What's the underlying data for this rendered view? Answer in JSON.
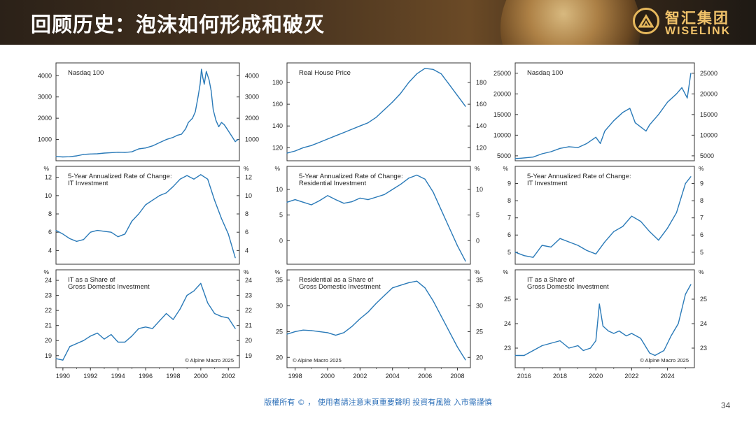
{
  "slide": {
    "title": "回顾历史：泡沫如何形成和破灭",
    "logo_cn": "智汇集团",
    "logo_en": "WISELINK",
    "footer": "版權所有 © ， 使用者請注意末頁重要聲明  投資有風險 入市需謹慎",
    "page_number": "34"
  },
  "colors": {
    "line": "#2a7ab8",
    "axis": "#333333",
    "title_text": "#ffffff",
    "logo": "#f0c26a"
  },
  "chart_data": [
    {
      "id": "c1_top",
      "type": "line",
      "title": "Nasdaq 100",
      "unit": "",
      "note": "",
      "xlim": [
        1989.5,
        2002.8
      ],
      "ylim": [
        0,
        4600
      ],
      "yticks": [
        1000,
        2000,
        3000,
        4000
      ],
      "xticks": [],
      "xtick_labels": [],
      "series": [
        {
          "x": [
            1989.5,
            1990,
            1990.5,
            1991,
            1991.5,
            1992,
            1992.5,
            1993,
            1993.5,
            1994,
            1994.5,
            1995,
            1995.5,
            1996,
            1996.5,
            1997,
            1997.5,
            1998,
            1998.3,
            1998.6,
            1998.9,
            1999.1,
            1999.4,
            1999.6,
            1999.8,
            1999.95,
            2000.05,
            2000.15,
            2000.25,
            2000.4,
            2000.6,
            2000.75,
            2000.9,
            2001.1,
            2001.3,
            2001.5,
            2001.7,
            2001.9,
            2002.1,
            2002.3,
            2002.5,
            2002.7
          ],
          "y": [
            200,
            180,
            190,
            230,
            300,
            320,
            330,
            360,
            380,
            400,
            390,
            420,
            560,
            600,
            700,
            850,
            1000,
            1100,
            1200,
            1250,
            1500,
            1800,
            2000,
            2300,
            3000,
            3600,
            4300,
            3900,
            3600,
            4200,
            3800,
            3300,
            2400,
            1900,
            1600,
            1800,
            1700,
            1500,
            1300,
            1100,
            900,
            1000
          ]
        }
      ]
    },
    {
      "id": "c1_mid",
      "type": "line",
      "title": "5-Year Annualized Rate of Change: IT Investment",
      "unit": "%",
      "note": "",
      "xlim": [
        1989.5,
        2002.8
      ],
      "ylim": [
        2.5,
        13.2
      ],
      "yticks": [
        4,
        6,
        8,
        10,
        12
      ],
      "xticks": [],
      "xtick_labels": [],
      "series": [
        {
          "x": [
            1989.5,
            1990,
            1990.5,
            1991,
            1991.5,
            1992,
            1992.5,
            1993,
            1993.5,
            1994,
            1994.5,
            1995,
            1995.5,
            1996,
            1996.5,
            1997,
            1997.5,
            1998,
            1998.5,
            1999,
            1999.5,
            2000,
            2000.5,
            2001,
            2001.5,
            2002,
            2002.5
          ],
          "y": [
            6.2,
            5.8,
            5.3,
            5.0,
            5.2,
            6.0,
            6.2,
            6.1,
            6.0,
            5.5,
            5.8,
            7.2,
            8.0,
            9.0,
            9.5,
            10.0,
            10.3,
            11.0,
            11.8,
            12.2,
            11.8,
            12.3,
            11.8,
            9.5,
            7.5,
            5.8,
            3.2
          ]
        }
      ]
    },
    {
      "id": "c1_bot",
      "type": "line",
      "title": "IT as a Share of Gross Domestic Investment",
      "unit": "%",
      "note": "© Alpine Macro 2025",
      "xlim": [
        1989.5,
        2002.8
      ],
      "ylim": [
        18.2,
        24.7
      ],
      "yticks": [
        19,
        20,
        21,
        22,
        23,
        24
      ],
      "xticks": [
        1990,
        1992,
        1994,
        1996,
        1998,
        2000,
        2002
      ],
      "xtick_labels": [
        "1990",
        "1992",
        "1994",
        "1996",
        "1998",
        "2000",
        "2002"
      ],
      "series": [
        {
          "x": [
            1989.5,
            1990,
            1990.5,
            1991,
            1991.5,
            1992,
            1992.5,
            1993,
            1993.5,
            1994,
            1994.5,
            1995,
            1995.5,
            1996,
            1996.5,
            1997,
            1997.5,
            1998,
            1998.5,
            1999,
            1999.5,
            2000,
            2000.5,
            2001,
            2001.5,
            2002,
            2002.5
          ],
          "y": [
            18.8,
            18.7,
            19.6,
            19.8,
            20.0,
            20.3,
            20.5,
            20.1,
            20.4,
            19.9,
            19.9,
            20.3,
            20.8,
            20.9,
            20.8,
            21.3,
            21.8,
            21.4,
            22.1,
            23.0,
            23.3,
            23.8,
            22.5,
            21.8,
            21.6,
            21.5,
            20.8
          ]
        }
      ]
    },
    {
      "id": "c2_top",
      "type": "line",
      "title": "Real House Price",
      "unit": "",
      "note": "",
      "xlim": [
        1997.5,
        2008.8
      ],
      "ylim": [
        108,
        198
      ],
      "yticks": [
        120,
        140,
        160,
        180
      ],
      "xticks": [],
      "xtick_labels": [],
      "series": [
        {
          "x": [
            1997.5,
            1998,
            1998.5,
            1999,
            1999.5,
            2000,
            2000.5,
            2001,
            2001.5,
            2002,
            2002.5,
            2003,
            2003.5,
            2004,
            2004.5,
            2005,
            2005.5,
            2006,
            2006.5,
            2007,
            2007.5,
            2008,
            2008.5
          ],
          "y": [
            115,
            117,
            120,
            122,
            125,
            128,
            131,
            134,
            137,
            140,
            143,
            148,
            155,
            162,
            170,
            180,
            188,
            193,
            192,
            188,
            178,
            168,
            158
          ]
        }
      ]
    },
    {
      "id": "c2_mid",
      "type": "line",
      "title": "5-Year Annualized Rate of Change: Residential Investment",
      "unit": "%",
      "note": "",
      "xlim": [
        1997.5,
        2008.8
      ],
      "ylim": [
        -4.6,
        14.5
      ],
      "yticks": [
        0,
        5,
        10
      ],
      "xticks": [],
      "xtick_labels": [],
      "series": [
        {
          "x": [
            1997.5,
            1998,
            1998.5,
            1999,
            1999.5,
            2000,
            2000.5,
            2001,
            2001.5,
            2002,
            2002.5,
            2003,
            2003.5,
            2004,
            2004.5,
            2005,
            2005.5,
            2006,
            2006.5,
            2007,
            2007.5,
            2008,
            2008.5
          ],
          "y": [
            7.5,
            8.0,
            7.5,
            7.0,
            7.8,
            8.8,
            8.0,
            7.3,
            7.6,
            8.3,
            8.0,
            8.5,
            9.0,
            10.0,
            11.0,
            12.2,
            12.8,
            12.0,
            9.5,
            6.0,
            2.5,
            -1.0,
            -4.0
          ]
        }
      ]
    },
    {
      "id": "c2_bot",
      "type": "line",
      "title": "Residential as a Share of Gross Domestic Investment",
      "unit": "%",
      "note": "© Alpine Macro 2025",
      "xlim": [
        1997.5,
        2008.8
      ],
      "ylim": [
        18,
        37
      ],
      "yticks": [
        20,
        25,
        30,
        35
      ],
      "xticks": [
        1998,
        2000,
        2002,
        2004,
        2006,
        2008
      ],
      "xtick_labels": [
        "1998",
        "2000",
        "2002",
        "2004",
        "2006",
        "2008"
      ],
      "series": [
        {
          "x": [
            1997.5,
            1998,
            1998.5,
            1999,
            1999.5,
            2000,
            2000.5,
            2001,
            2001.5,
            2002,
            2002.5,
            2003,
            2003.5,
            2004,
            2004.5,
            2005,
            2005.5,
            2006,
            2006.5,
            2007,
            2007.5,
            2008,
            2008.5
          ],
          "y": [
            24.5,
            25.0,
            25.3,
            25.2,
            25.0,
            24.8,
            24.3,
            24.8,
            26.0,
            27.5,
            28.8,
            30.5,
            32.0,
            33.5,
            34.0,
            34.5,
            34.8,
            33.5,
            31.0,
            28.0,
            25.0,
            22.0,
            19.5
          ]
        }
      ]
    },
    {
      "id": "c3_top",
      "type": "line",
      "title": "Nasdaq 100",
      "unit": "",
      "note": "",
      "xlim": [
        2015.5,
        2025.5
      ],
      "ylim": [
        3800,
        27500
      ],
      "yticks": [
        5000,
        10000,
        15000,
        20000,
        25000
      ],
      "xticks": [],
      "xtick_labels": [],
      "series": [
        {
          "x": [
            2015.5,
            2016,
            2016.5,
            2017,
            2017.5,
            2018,
            2018.5,
            2019,
            2019.5,
            2020,
            2020.25,
            2020.5,
            2020.8,
            2021,
            2021.5,
            2021.9,
            2022.2,
            2022.5,
            2022.8,
            2023,
            2023.5,
            2024,
            2024.5,
            2024.8,
            2025.1,
            2025.3
          ],
          "y": [
            4300,
            4500,
            4700,
            5500,
            6000,
            6800,
            7200,
            7000,
            8000,
            9500,
            8000,
            11000,
            12500,
            13500,
            15500,
            16500,
            13000,
            12000,
            11000,
            12500,
            15000,
            18000,
            20000,
            21500,
            19000,
            25000
          ]
        }
      ]
    },
    {
      "id": "c3_mid",
      "type": "line",
      "title": "5-Year Annualized Rate of Change: IT Investment",
      "unit": "%",
      "note": "",
      "xlim": [
        2015.5,
        2025.5
      ],
      "ylim": [
        4.3,
        10
      ],
      "yticks": [
        5,
        6,
        7,
        8,
        9
      ],
      "xticks": [],
      "xtick_labels": [],
      "series": [
        {
          "x": [
            2015.5,
            2016,
            2016.5,
            2017,
            2017.5,
            2018,
            2018.5,
            2019,
            2019.5,
            2020,
            2020.5,
            2021,
            2021.5,
            2022,
            2022.5,
            2023,
            2023.5,
            2024,
            2024.5,
            2025,
            2025.3
          ],
          "y": [
            5.0,
            4.8,
            4.7,
            5.4,
            5.3,
            5.8,
            5.6,
            5.4,
            5.1,
            4.9,
            5.6,
            6.2,
            6.5,
            7.1,
            6.8,
            6.2,
            5.7,
            6.4,
            7.3,
            9.0,
            9.4
          ]
        }
      ]
    },
    {
      "id": "c3_bot",
      "type": "line",
      "title": "IT as a Share of Gross Domestic Investment",
      "unit": "%",
      "note": "© Alpine Macro 2025",
      "xlim": [
        2015.5,
        2025.5
      ],
      "ylim": [
        22.2,
        26.2
      ],
      "yticks": [
        23,
        24,
        25
      ],
      "xticks": [
        2016,
        2018,
        2020,
        2022,
        2024
      ],
      "xtick_labels": [
        "2016",
        "2018",
        "2020",
        "2022",
        "2024"
      ],
      "series": [
        {
          "x": [
            2015.5,
            2016,
            2016.5,
            2017,
            2017.5,
            2018,
            2018.5,
            2019,
            2019.3,
            2019.7,
            2020,
            2020.2,
            2020.4,
            2020.7,
            2021,
            2021.3,
            2021.7,
            2022,
            2022.5,
            2023,
            2023.3,
            2023.8,
            2024.2,
            2024.6,
            2025,
            2025.3
          ],
          "y": [
            22.7,
            22.7,
            22.9,
            23.1,
            23.2,
            23.3,
            23.0,
            23.1,
            22.9,
            23.0,
            23.3,
            24.8,
            23.9,
            23.7,
            23.6,
            23.7,
            23.5,
            23.6,
            23.4,
            22.8,
            22.7,
            22.9,
            23.5,
            24.0,
            25.2,
            25.6
          ]
        }
      ]
    }
  ]
}
